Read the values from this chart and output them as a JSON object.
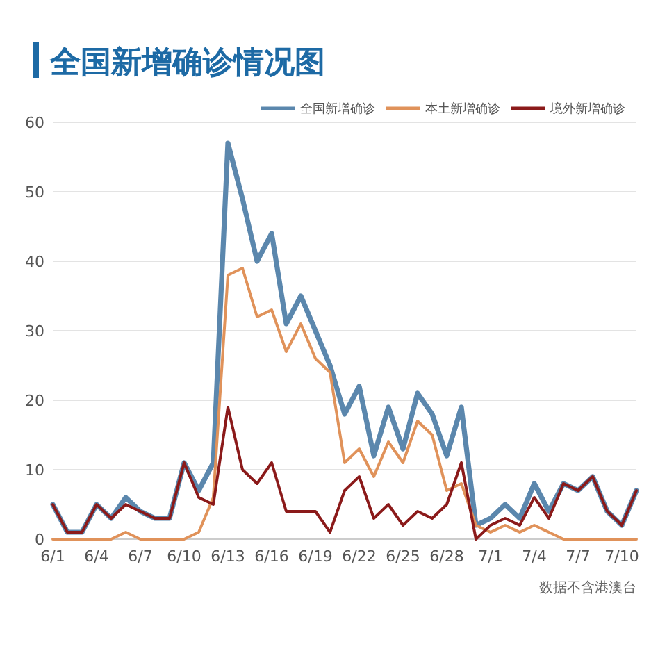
{
  "chart_data": {
    "type": "line",
    "title": "全国新增确诊情况图",
    "x": [
      "--06-01",
      "--06-02",
      "--06-03",
      "--06-04",
      "--06-05",
      "--06-06",
      "--06-07",
      "--06-08",
      "--06-09",
      "--06-10",
      "--06-11",
      "--06-12",
      "--06-13",
      "--06-14",
      "--06-15",
      "--06-16",
      "--06-17",
      "--06-18",
      "--06-19",
      "--06-20",
      "--06-21",
      "--06-22",
      "--06-23",
      "--06-24",
      "--06-25",
      "--06-26",
      "--06-27",
      "--06-28",
      "--06-29",
      "--06-30",
      "--07-01",
      "--07-02",
      "--07-03",
      "--07-04",
      "--07-05",
      "--07-06",
      "--07-07",
      "--07-08",
      "--07-09",
      "--07-10",
      "--07-11"
    ],
    "series": [
      {
        "name": "全国新增确诊",
        "color": "#5b87ad",
        "values": [
          5,
          1,
          1,
          5,
          3,
          6,
          4,
          3,
          3,
          11,
          7,
          11,
          57,
          49,
          40,
          44,
          31,
          35,
          30,
          25,
          18,
          22,
          12,
          19,
          13,
          21,
          18,
          12,
          19,
          2,
          3,
          5,
          3,
          8,
          4,
          8,
          7,
          9,
          4,
          2,
          7
        ]
      },
      {
        "name": "本土新增确诊",
        "color": "#e0925a",
        "values": [
          0,
          0,
          0,
          0,
          0,
          1,
          0,
          0,
          0,
          0,
          1,
          6,
          38,
          39,
          32,
          33,
          27,
          31,
          26,
          24,
          11,
          13,
          9,
          14,
          11,
          17,
          15,
          7,
          8,
          2,
          1,
          2,
          1,
          2,
          1,
          0,
          0,
          0,
          0,
          0,
          0
        ]
      },
      {
        "name": "境外新增确诊",
        "color": "#8b1a1a",
        "values": [
          5,
          1,
          1,
          5,
          3,
          5,
          4,
          3,
          3,
          11,
          6,
          5,
          19,
          10,
          8,
          11,
          4,
          4,
          4,
          1,
          7,
          9,
          3,
          5,
          2,
          4,
          3,
          5,
          11,
          0,
          2,
          3,
          2,
          6,
          3,
          8,
          7,
          9,
          4,
          2,
          7
        ]
      }
    ],
    "xlim": [
      "--06-01",
      "--07-11"
    ],
    "xticks": [
      {
        "value": "--06-01",
        "label": "6/1"
      },
      {
        "value": "--06-04",
        "label": "6/4"
      },
      {
        "value": "--06-07",
        "label": "6/7"
      },
      {
        "value": "--06-10",
        "label": "6/10"
      },
      {
        "value": "--06-13",
        "label": "6/13"
      },
      {
        "value": "--06-16",
        "label": "6/16"
      },
      {
        "value": "--06-19",
        "label": "6/19"
      },
      {
        "value": "--06-22",
        "label": "6/22"
      },
      {
        "value": "--06-25",
        "label": "6/25"
      },
      {
        "value": "--06-28",
        "label": "6/28"
      },
      {
        "value": "--07-01",
        "label": "7/1"
      },
      {
        "value": "--07-04",
        "label": "7/4"
      },
      {
        "value": "--07-07",
        "label": "7/7"
      },
      {
        "value": "--07-10",
        "label": "7/10"
      }
    ],
    "ylim": [
      0,
      60
    ],
    "yticks": [
      0,
      10,
      20,
      30,
      40,
      50,
      60
    ],
    "grid": "y",
    "legend": "top right",
    "marker": "none",
    "line_style": "solid",
    "annotations": [
      "数据不含港澳台"
    ]
  }
}
